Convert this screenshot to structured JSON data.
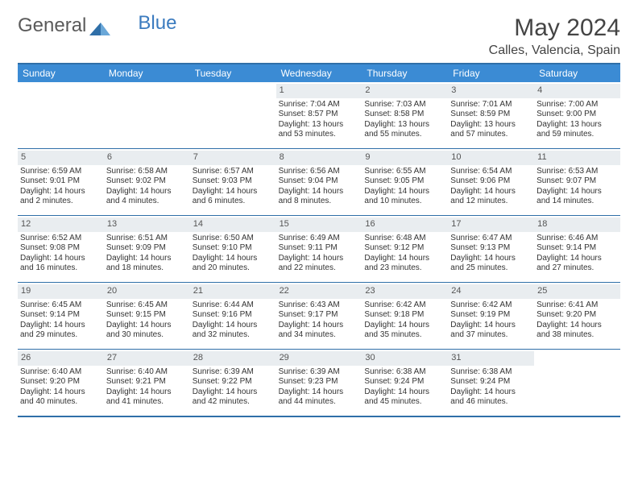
{
  "brand": {
    "part1": "General",
    "part2": "Blue"
  },
  "title": "May 2024",
  "location": "Calles, Valencia, Spain",
  "colors": {
    "header_bg": "#3b8bd4",
    "border": "#2f6fa8",
    "daynum_bg": "#e9edf0",
    "text": "#333333",
    "brand_gray": "#5a5a5a",
    "brand_blue": "#3b7bbf"
  },
  "day_headers": [
    "Sunday",
    "Monday",
    "Tuesday",
    "Wednesday",
    "Thursday",
    "Friday",
    "Saturday"
  ],
  "weeks": [
    [
      {
        "n": "",
        "sr": "",
        "ss": "",
        "d1": "",
        "d2": ""
      },
      {
        "n": "",
        "sr": "",
        "ss": "",
        "d1": "",
        "d2": ""
      },
      {
        "n": "",
        "sr": "",
        "ss": "",
        "d1": "",
        "d2": ""
      },
      {
        "n": "1",
        "sr": "Sunrise: 7:04 AM",
        "ss": "Sunset: 8:57 PM",
        "d1": "Daylight: 13 hours",
        "d2": "and 53 minutes."
      },
      {
        "n": "2",
        "sr": "Sunrise: 7:03 AM",
        "ss": "Sunset: 8:58 PM",
        "d1": "Daylight: 13 hours",
        "d2": "and 55 minutes."
      },
      {
        "n": "3",
        "sr": "Sunrise: 7:01 AM",
        "ss": "Sunset: 8:59 PM",
        "d1": "Daylight: 13 hours",
        "d2": "and 57 minutes."
      },
      {
        "n": "4",
        "sr": "Sunrise: 7:00 AM",
        "ss": "Sunset: 9:00 PM",
        "d1": "Daylight: 13 hours",
        "d2": "and 59 minutes."
      }
    ],
    [
      {
        "n": "5",
        "sr": "Sunrise: 6:59 AM",
        "ss": "Sunset: 9:01 PM",
        "d1": "Daylight: 14 hours",
        "d2": "and 2 minutes."
      },
      {
        "n": "6",
        "sr": "Sunrise: 6:58 AM",
        "ss": "Sunset: 9:02 PM",
        "d1": "Daylight: 14 hours",
        "d2": "and 4 minutes."
      },
      {
        "n": "7",
        "sr": "Sunrise: 6:57 AM",
        "ss": "Sunset: 9:03 PM",
        "d1": "Daylight: 14 hours",
        "d2": "and 6 minutes."
      },
      {
        "n": "8",
        "sr": "Sunrise: 6:56 AM",
        "ss": "Sunset: 9:04 PM",
        "d1": "Daylight: 14 hours",
        "d2": "and 8 minutes."
      },
      {
        "n": "9",
        "sr": "Sunrise: 6:55 AM",
        "ss": "Sunset: 9:05 PM",
        "d1": "Daylight: 14 hours",
        "d2": "and 10 minutes."
      },
      {
        "n": "10",
        "sr": "Sunrise: 6:54 AM",
        "ss": "Sunset: 9:06 PM",
        "d1": "Daylight: 14 hours",
        "d2": "and 12 minutes."
      },
      {
        "n": "11",
        "sr": "Sunrise: 6:53 AM",
        "ss": "Sunset: 9:07 PM",
        "d1": "Daylight: 14 hours",
        "d2": "and 14 minutes."
      }
    ],
    [
      {
        "n": "12",
        "sr": "Sunrise: 6:52 AM",
        "ss": "Sunset: 9:08 PM",
        "d1": "Daylight: 14 hours",
        "d2": "and 16 minutes."
      },
      {
        "n": "13",
        "sr": "Sunrise: 6:51 AM",
        "ss": "Sunset: 9:09 PM",
        "d1": "Daylight: 14 hours",
        "d2": "and 18 minutes."
      },
      {
        "n": "14",
        "sr": "Sunrise: 6:50 AM",
        "ss": "Sunset: 9:10 PM",
        "d1": "Daylight: 14 hours",
        "d2": "and 20 minutes."
      },
      {
        "n": "15",
        "sr": "Sunrise: 6:49 AM",
        "ss": "Sunset: 9:11 PM",
        "d1": "Daylight: 14 hours",
        "d2": "and 22 minutes."
      },
      {
        "n": "16",
        "sr": "Sunrise: 6:48 AM",
        "ss": "Sunset: 9:12 PM",
        "d1": "Daylight: 14 hours",
        "d2": "and 23 minutes."
      },
      {
        "n": "17",
        "sr": "Sunrise: 6:47 AM",
        "ss": "Sunset: 9:13 PM",
        "d1": "Daylight: 14 hours",
        "d2": "and 25 minutes."
      },
      {
        "n": "18",
        "sr": "Sunrise: 6:46 AM",
        "ss": "Sunset: 9:14 PM",
        "d1": "Daylight: 14 hours",
        "d2": "and 27 minutes."
      }
    ],
    [
      {
        "n": "19",
        "sr": "Sunrise: 6:45 AM",
        "ss": "Sunset: 9:14 PM",
        "d1": "Daylight: 14 hours",
        "d2": "and 29 minutes."
      },
      {
        "n": "20",
        "sr": "Sunrise: 6:45 AM",
        "ss": "Sunset: 9:15 PM",
        "d1": "Daylight: 14 hours",
        "d2": "and 30 minutes."
      },
      {
        "n": "21",
        "sr": "Sunrise: 6:44 AM",
        "ss": "Sunset: 9:16 PM",
        "d1": "Daylight: 14 hours",
        "d2": "and 32 minutes."
      },
      {
        "n": "22",
        "sr": "Sunrise: 6:43 AM",
        "ss": "Sunset: 9:17 PM",
        "d1": "Daylight: 14 hours",
        "d2": "and 34 minutes."
      },
      {
        "n": "23",
        "sr": "Sunrise: 6:42 AM",
        "ss": "Sunset: 9:18 PM",
        "d1": "Daylight: 14 hours",
        "d2": "and 35 minutes."
      },
      {
        "n": "24",
        "sr": "Sunrise: 6:42 AM",
        "ss": "Sunset: 9:19 PM",
        "d1": "Daylight: 14 hours",
        "d2": "and 37 minutes."
      },
      {
        "n": "25",
        "sr": "Sunrise: 6:41 AM",
        "ss": "Sunset: 9:20 PM",
        "d1": "Daylight: 14 hours",
        "d2": "and 38 minutes."
      }
    ],
    [
      {
        "n": "26",
        "sr": "Sunrise: 6:40 AM",
        "ss": "Sunset: 9:20 PM",
        "d1": "Daylight: 14 hours",
        "d2": "and 40 minutes."
      },
      {
        "n": "27",
        "sr": "Sunrise: 6:40 AM",
        "ss": "Sunset: 9:21 PM",
        "d1": "Daylight: 14 hours",
        "d2": "and 41 minutes."
      },
      {
        "n": "28",
        "sr": "Sunrise: 6:39 AM",
        "ss": "Sunset: 9:22 PM",
        "d1": "Daylight: 14 hours",
        "d2": "and 42 minutes."
      },
      {
        "n": "29",
        "sr": "Sunrise: 6:39 AM",
        "ss": "Sunset: 9:23 PM",
        "d1": "Daylight: 14 hours",
        "d2": "and 44 minutes."
      },
      {
        "n": "30",
        "sr": "Sunrise: 6:38 AM",
        "ss": "Sunset: 9:24 PM",
        "d1": "Daylight: 14 hours",
        "d2": "and 45 minutes."
      },
      {
        "n": "31",
        "sr": "Sunrise: 6:38 AM",
        "ss": "Sunset: 9:24 PM",
        "d1": "Daylight: 14 hours",
        "d2": "and 46 minutes."
      },
      {
        "n": "",
        "sr": "",
        "ss": "",
        "d1": "",
        "d2": ""
      }
    ]
  ]
}
